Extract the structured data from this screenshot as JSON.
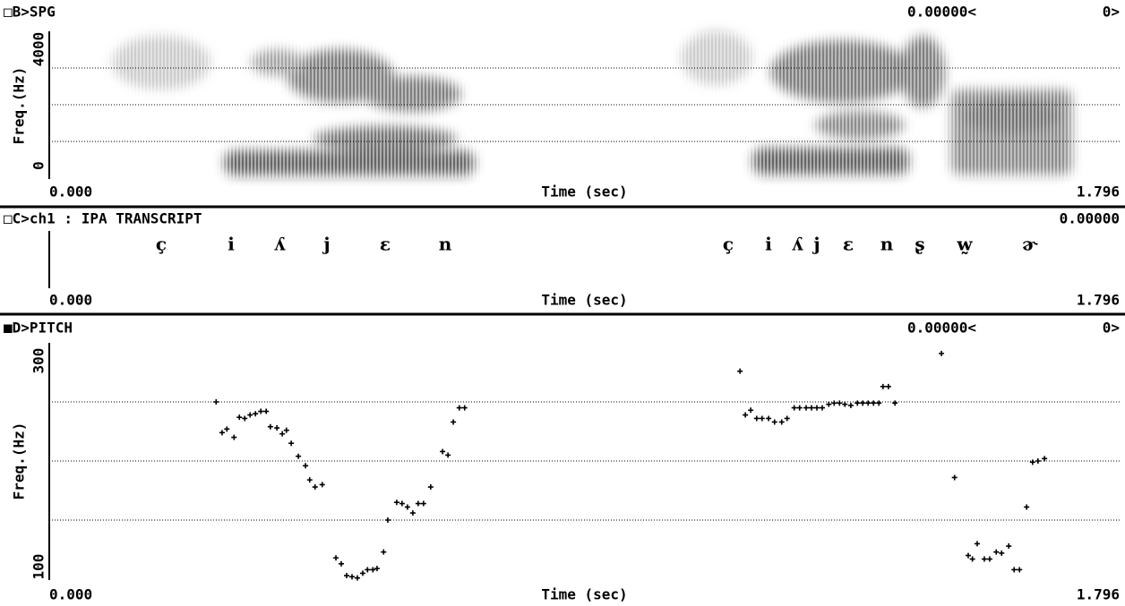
{
  "spectrogram": {
    "header": "□B>SPG",
    "cursor_time": "0.00000<",
    "cursor_count": "0>",
    "ylabel": "Freq.(Hz)",
    "ylim": [
      0,
      4000
    ],
    "yticks": [
      0,
      4000
    ],
    "grid": [
      1000,
      2000,
      3000
    ],
    "xlabel": "Time (sec)",
    "xticks": [
      {
        "value": 0,
        "label": "0.000"
      },
      {
        "value": 1.796,
        "label": "1.796"
      }
    ]
  },
  "transcript": {
    "header": "□C>ch1 : IPA TRANSCRIPT",
    "cursor_time": "0.00000",
    "symbols": [
      "ç",
      "i",
      "ʎ",
      "j",
      "ɛ",
      "n",
      "ç",
      "i",
      "ʎ",
      "j",
      "ɛ",
      "n",
      "ʂ",
      "w̰",
      "ɚ"
    ],
    "xlabel": "Time (sec)",
    "xticks": [
      {
        "value": 0,
        "label": "0.000"
      },
      {
        "value": 1.796,
        "label": "1.796"
      }
    ]
  },
  "chart_data": {
    "type": "scatter",
    "title": "■D>PITCH",
    "cursor_time": "0.00000<",
    "cursor_count": "0>",
    "ylabel": "Freq.(Hz)",
    "xlabel": "Time (sec)",
    "color": "#000000",
    "xlim": [
      0,
      1.796
    ],
    "xticks": [
      {
        "value": 0,
        "label": "0.000"
      },
      {
        "value": 1.796,
        "label": "1.796"
      }
    ],
    "ylim": [
      100,
      300
    ],
    "yticks": [
      100,
      300
    ],
    "grid": [
      150,
      200,
      250
    ],
    "x": [
      0.28,
      0.29,
      0.298,
      0.31,
      0.319,
      0.328,
      0.337,
      0.346,
      0.355,
      0.364,
      0.371,
      0.382,
      0.391,
      0.398,
      0.406,
      0.418,
      0.43,
      0.437,
      0.446,
      0.458,
      0.481,
      0.49,
      0.499,
      0.508,
      0.517,
      0.526,
      0.534,
      0.543,
      0.55,
      0.561,
      0.568,
      0.583,
      0.592,
      0.601,
      0.61,
      0.619,
      0.628,
      0.64,
      0.66,
      0.669,
      0.678,
      0.688,
      0.697,
      1.159,
      1.168,
      1.177,
      1.187,
      1.196,
      1.207,
      1.217,
      1.229,
      1.238,
      1.25,
      1.259,
      1.27,
      1.279,
      1.288,
      1.297,
      1.308,
      1.317,
      1.326,
      1.335,
      1.345,
      1.356,
      1.365,
      1.374,
      1.383,
      1.392,
      1.399,
      1.408,
      1.419,
      1.497,
      1.519,
      1.542,
      1.549,
      1.557,
      1.569,
      1.578,
      1.589,
      1.598,
      1.61,
      1.619,
      1.628,
      1.64,
      1.65,
      1.659,
      1.67
    ],
    "values": [
      250,
      224,
      227,
      220,
      237,
      236,
      239,
      240,
      242,
      242,
      229,
      228,
      223,
      226,
      215,
      204,
      196,
      184,
      178,
      180,
      118,
      113,
      103,
      102,
      101,
      105,
      108,
      108,
      109,
      123,
      150,
      165,
      164,
      161,
      156,
      164,
      164,
      178,
      208,
      205,
      233,
      245,
      245,
      276,
      239,
      243,
      236,
      236,
      236,
      233,
      233,
      236,
      245,
      245,
      245,
      245,
      245,
      245,
      248,
      249,
      249,
      248,
      247,
      249,
      249,
      249,
      249,
      249,
      263,
      263,
      249,
      291,
      186,
      120,
      117,
      130,
      117,
      117,
      123,
      122,
      128,
      108,
      108,
      161,
      199,
      200,
      202
    ]
  }
}
